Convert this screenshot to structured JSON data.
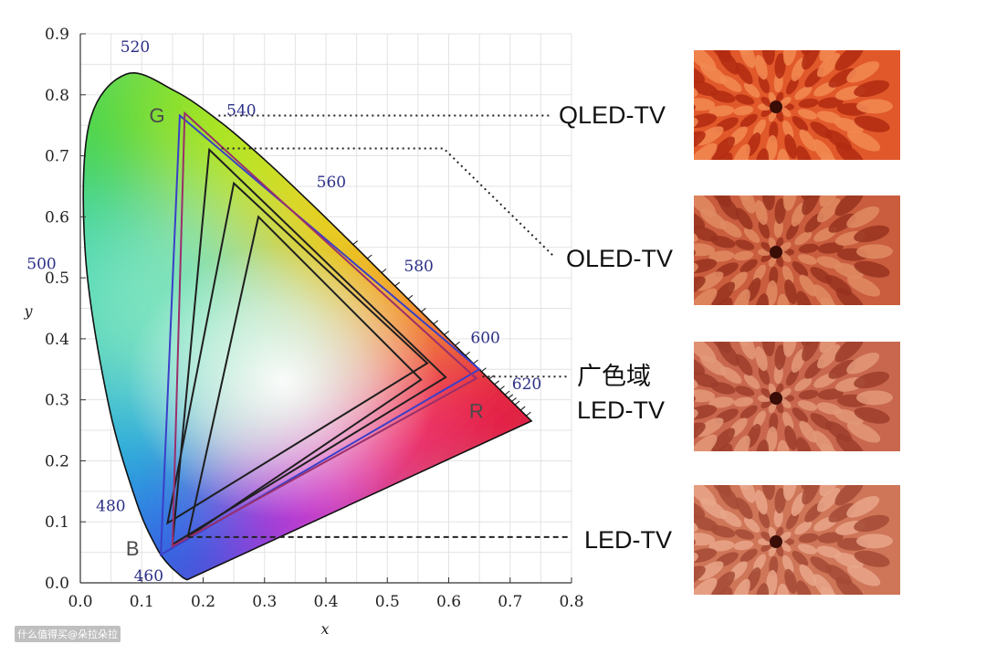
{
  "chart_data": {
    "type": "scatter",
    "title": "",
    "xlabel": "x",
    "ylabel": "y",
    "xlim": [
      0.0,
      0.8
    ],
    "ylim": [
      0.0,
      0.9
    ],
    "x_ticks": [
      "0.0",
      "0.1",
      "0.2",
      "0.3",
      "0.4",
      "0.5",
      "0.6",
      "0.7",
      "0.8"
    ],
    "y_ticks": [
      "0.0",
      "0.1",
      "0.2",
      "0.3",
      "0.4",
      "0.5",
      "0.6",
      "0.7",
      "0.8",
      "0.9"
    ],
    "spectral_locus": [
      [
        0.1741,
        0.005
      ],
      [
        0.1666,
        0.0089
      ],
      [
        0.1566,
        0.0177
      ],
      [
        0.144,
        0.0297
      ],
      [
        0.1241,
        0.0578
      ],
      [
        0.0913,
        0.1327
      ],
      [
        0.0454,
        0.295
      ],
      [
        0.0082,
        0.5384
      ],
      [
        0.0139,
        0.7502
      ],
      [
        0.0743,
        0.8338
      ],
      [
        0.1547,
        0.8059
      ],
      [
        0.2296,
        0.7543
      ],
      [
        0.3016,
        0.6923
      ],
      [
        0.3731,
        0.6245
      ],
      [
        0.4441,
        0.5547
      ],
      [
        0.5125,
        0.4866
      ],
      [
        0.5752,
        0.4242
      ],
      [
        0.627,
        0.3725
      ],
      [
        0.6658,
        0.334
      ],
      [
        0.6915,
        0.3083
      ],
      [
        0.7079,
        0.292
      ],
      [
        0.7347,
        0.2653
      ]
    ],
    "wavelength_labels": [
      {
        "label": "460",
        "x": 0.144,
        "y": 0.0297
      },
      {
        "label": "480",
        "x": 0.0913,
        "y": 0.1327
      },
      {
        "label": "500",
        "x": 0.0082,
        "y": 0.5384
      },
      {
        "label": "520",
        "x": 0.0743,
        "y": 0.8338
      },
      {
        "label": "540",
        "x": 0.2296,
        "y": 0.7543
      },
      {
        "label": "560",
        "x": 0.3731,
        "y": 0.6245
      },
      {
        "label": "580",
        "x": 0.5125,
        "y": 0.4866
      },
      {
        "label": "600",
        "x": 0.627,
        "y": 0.3725
      },
      {
        "label": "620",
        "x": 0.6915,
        "y": 0.3083
      }
    ],
    "corner_labels": [
      "G",
      "R",
      "B"
    ],
    "series": [
      {
        "name": "QLED-TV",
        "color": "#3a3fc8",
        "points": [
          [
            0.162,
            0.766
          ],
          [
            0.65,
            0.35
          ],
          [
            0.131,
            0.046
          ]
        ]
      },
      {
        "name": "OLED-TV",
        "color": "#1f1f1f",
        "points": [
          [
            0.21,
            0.71
          ],
          [
            0.595,
            0.337
          ],
          [
            0.15,
            0.063
          ]
        ]
      },
      {
        "name": "广色域 LED-TV",
        "color": "#1f1f1f",
        "points": [
          [
            0.25,
            0.655
          ],
          [
            0.565,
            0.36
          ],
          [
            0.142,
            0.098
          ]
        ]
      },
      {
        "name": "LED-TV",
        "color": "#1f1f1f",
        "points": [
          [
            0.29,
            0.6
          ],
          [
            0.555,
            0.333
          ],
          [
            0.175,
            0.075
          ]
        ]
      },
      {
        "name": "",
        "color": "#9a2f6b",
        "points": [
          [
            0.17,
            0.77
          ],
          [
            0.645,
            0.335
          ],
          [
            0.15,
            0.06
          ]
        ]
      }
    ],
    "legend": [
      {
        "lines": [
          "QLED-TV"
        ],
        "point": [
          0.225,
          0.766
        ],
        "style": "dotted",
        "photo": "rose-vivid"
      },
      {
        "lines": [
          "OLED-TV"
        ],
        "point": [
          0.23,
          0.712
        ],
        "style": "dotted",
        "photo": "rose-medium"
      },
      {
        "lines": [
          "广色域",
          "LED-TV"
        ],
        "point": [
          0.655,
          0.338
        ],
        "style": "dotted",
        "photo": "rose-soft"
      },
      {
        "lines": [
          "LED-TV"
        ],
        "point": [
          0.175,
          0.075
        ],
        "style": "dashed",
        "photo": "rose-pale"
      }
    ]
  },
  "photo_colors": {
    "rose-vivid": [
      "#b12a10",
      "#e1582a",
      "#f28a52"
    ],
    "rose-medium": [
      "#98321f",
      "#c95d3e",
      "#e08b63"
    ],
    "rose-soft": [
      "#9c3d2b",
      "#c9674e",
      "#e39979"
    ],
    "rose-pale": [
      "#a44a35",
      "#cf7558",
      "#e9a689"
    ]
  },
  "watermark": "什么值得买@朵拉朵拉"
}
